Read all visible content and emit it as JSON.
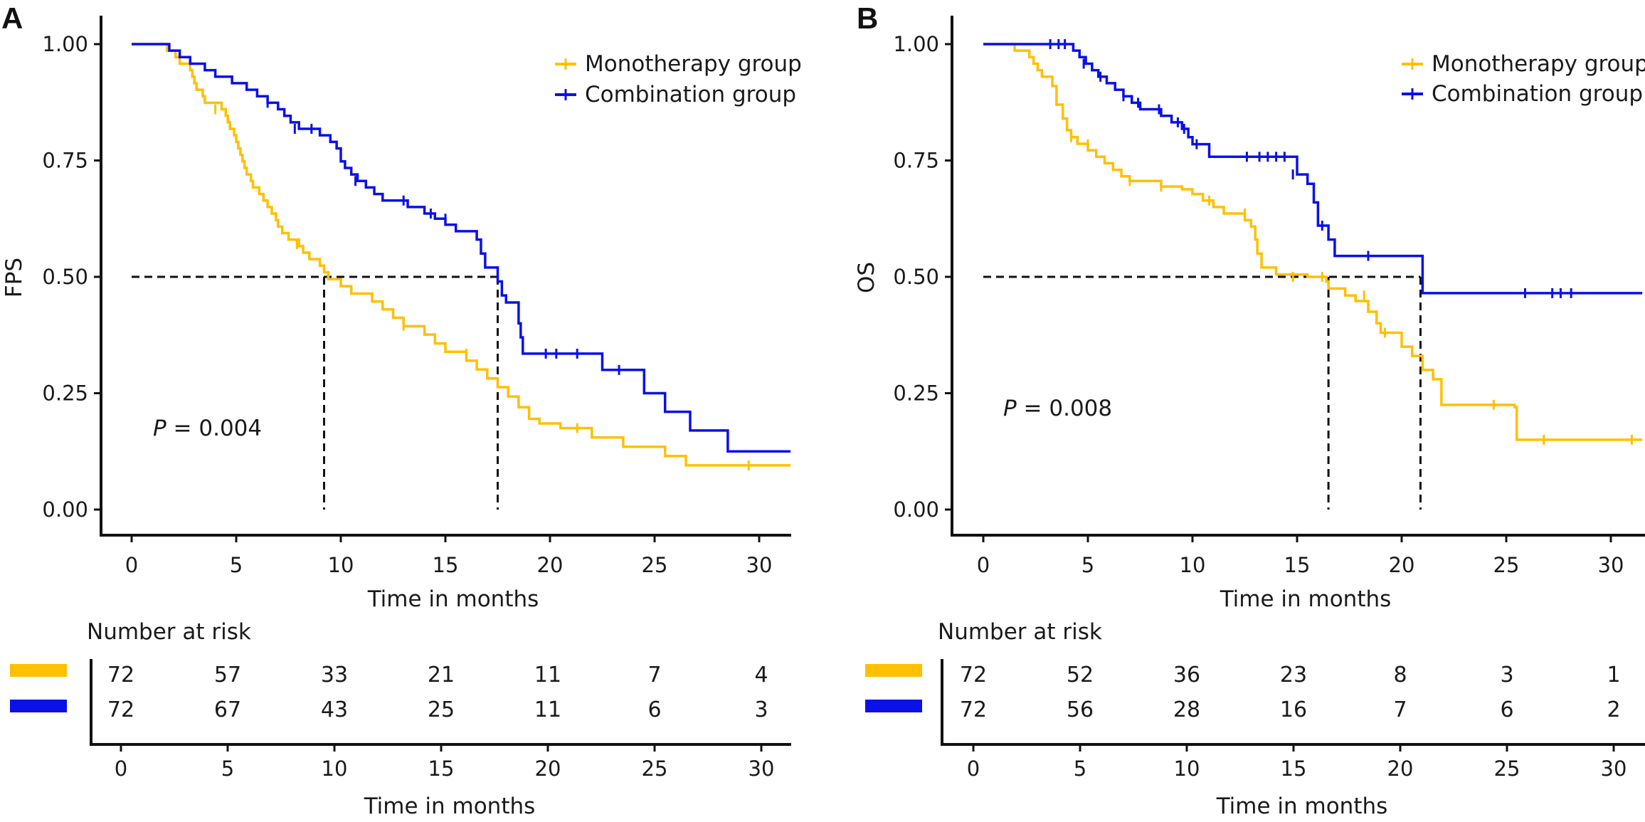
{
  "colors": {
    "monotherapy": "#FFC000",
    "combination": "#0A10E8",
    "axis": "#111111",
    "guide": "#111111"
  },
  "panels": [
    {
      "letter": "A",
      "ylabel": "FPS",
      "xlabel": "Time in months",
      "yticks": [
        "0.00",
        "0.25",
        "0.50",
        "0.75",
        "1.00"
      ],
      "xticks": [
        "0",
        "5",
        "10",
        "15",
        "20",
        "25",
        "30"
      ],
      "legend": [
        "Monotherapy group",
        "Combination group"
      ],
      "p_italic": "P",
      "p_rest": " = 0.004",
      "risk": {
        "title": "Number at risk",
        "xlabel": "Time in months",
        "xticks": [
          "0",
          "5",
          "10",
          "15",
          "20",
          "25",
          "30"
        ],
        "monotherapy": [
          "72",
          "57",
          "33",
          "21",
          "11",
          "7",
          "4"
        ],
        "combination": [
          "72",
          "67",
          "43",
          "25",
          "11",
          "6",
          "3"
        ]
      }
    },
    {
      "letter": "B",
      "ylabel": "OS",
      "xlabel": "Time in months",
      "yticks": [
        "0.00",
        "0.25",
        "0.50",
        "0.75",
        "1.00"
      ],
      "xticks": [
        "0",
        "5",
        "10",
        "15",
        "20",
        "25",
        "30"
      ],
      "legend": [
        "Monotherapy group",
        "Combination group"
      ],
      "p_italic": "P",
      "p_rest": " = 0.008",
      "risk": {
        "title": "Number at risk",
        "xlabel": "Time in months",
        "xticks": [
          "0",
          "5",
          "10",
          "15",
          "20",
          "25",
          "30"
        ],
        "monotherapy": [
          "72",
          "52",
          "36",
          "23",
          "8",
          "3",
          "1"
        ],
        "combination": [
          "72",
          "56",
          "28",
          "16",
          "7",
          "6",
          "2"
        ]
      }
    }
  ],
  "chart_data": [
    {
      "type": "line",
      "title": "",
      "xlabel": "Time in months",
      "ylabel": "FPS",
      "xlim": [
        -1.5,
        31.5
      ],
      "ylim": [
        -0.05,
        1.05
      ],
      "x_ticks": [
        0,
        5,
        10,
        15,
        20,
        25,
        30
      ],
      "y_ticks": [
        0,
        0.25,
        0.5,
        0.75,
        1.0
      ],
      "legend_position": "top-right",
      "p_value": "P = 0.004",
      "median_survival": [
        {
          "series": "Monotherapy group",
          "x": 9.2,
          "y": 0.5
        },
        {
          "series": "Combination group",
          "x": 17.5,
          "y": 0.5
        }
      ],
      "series": [
        {
          "name": "Monotherapy group",
          "color": "#FFC000",
          "steps": [
            [
              0,
              1.0
            ],
            [
              1.7,
              0.986
            ],
            [
              2.1,
              0.972
            ],
            [
              2.3,
              0.958
            ],
            [
              2.8,
              0.944
            ],
            [
              2.9,
              0.93
            ],
            [
              3.0,
              0.916
            ],
            [
              3.1,
              0.902
            ],
            [
              3.4,
              0.888
            ],
            [
              3.5,
              0.874
            ],
            [
              4.3,
              0.86
            ],
            [
              4.5,
              0.846
            ],
            [
              4.6,
              0.832
            ],
            [
              4.7,
              0.818
            ],
            [
              4.9,
              0.804
            ],
            [
              5.0,
              0.79
            ],
            [
              5.1,
              0.776
            ],
            [
              5.2,
              0.762
            ],
            [
              5.3,
              0.748
            ],
            [
              5.4,
              0.734
            ],
            [
              5.5,
              0.72
            ],
            [
              5.7,
              0.706
            ],
            [
              5.8,
              0.692
            ],
            [
              6.1,
              0.678
            ],
            [
              6.3,
              0.664
            ],
            [
              6.5,
              0.65
            ],
            [
              6.7,
              0.636
            ],
            [
              6.9,
              0.622
            ],
            [
              7.0,
              0.608
            ],
            [
              7.2,
              0.594
            ],
            [
              7.5,
              0.58
            ],
            [
              8.0,
              0.566
            ],
            [
              8.2,
              0.552
            ],
            [
              8.5,
              0.538
            ],
            [
              9.0,
              0.524
            ],
            [
              9.2,
              0.51
            ],
            [
              9.4,
              0.495
            ],
            [
              10.0,
              0.48
            ],
            [
              10.5,
              0.464
            ],
            [
              11.5,
              0.447
            ],
            [
              12.0,
              0.43
            ],
            [
              12.5,
              0.412
            ],
            [
              13.0,
              0.394
            ],
            [
              14.0,
              0.376
            ],
            [
              14.5,
              0.357
            ],
            [
              15.0,
              0.339
            ],
            [
              16.0,
              0.32
            ],
            [
              16.5,
              0.301
            ],
            [
              17.0,
              0.282
            ],
            [
              17.5,
              0.263
            ],
            [
              18.0,
              0.243
            ],
            [
              18.5,
              0.22
            ],
            [
              19.0,
              0.195
            ],
            [
              19.5,
              0.185
            ],
            [
              20.5,
              0.175
            ],
            [
              22.0,
              0.155
            ],
            [
              23.5,
              0.135
            ],
            [
              25.5,
              0.115
            ],
            [
              26.5,
              0.095
            ],
            [
              31.5,
              0.095
            ]
          ],
          "censored": [
            [
              4.0,
              0.86
            ],
            [
              7.9,
              0.57
            ],
            [
              13.0,
              0.395
            ],
            [
              16.0,
              0.335
            ],
            [
              21.3,
              0.175
            ],
            [
              29.5,
              0.095
            ]
          ]
        },
        {
          "name": "Combination group",
          "color": "#0A10E8",
          "steps": [
            [
              0,
              1.0
            ],
            [
              1.8,
              0.986
            ],
            [
              2.3,
              0.972
            ],
            [
              2.8,
              0.958
            ],
            [
              3.5,
              0.944
            ],
            [
              4.0,
              0.93
            ],
            [
              4.8,
              0.916
            ],
            [
              5.5,
              0.902
            ],
            [
              6.0,
              0.888
            ],
            [
              6.5,
              0.874
            ],
            [
              7.0,
              0.86
            ],
            [
              7.3,
              0.846
            ],
            [
              7.6,
              0.832
            ],
            [
              8.0,
              0.818
            ],
            [
              9.0,
              0.804
            ],
            [
              9.5,
              0.79
            ],
            [
              9.8,
              0.776
            ],
            [
              10.0,
              0.762
            ],
            [
              10.0,
              0.748
            ],
            [
              10.2,
              0.734
            ],
            [
              10.5,
              0.72
            ],
            [
              10.8,
              0.706
            ],
            [
              11.2,
              0.692
            ],
            [
              11.6,
              0.678
            ],
            [
              12.0,
              0.664
            ],
            [
              13.2,
              0.65
            ],
            [
              14.0,
              0.636
            ],
            [
              14.5,
              0.625
            ],
            [
              15.0,
              0.612
            ],
            [
              15.5,
              0.598
            ],
            [
              16.5,
              0.58
            ],
            [
              16.7,
              0.55
            ],
            [
              16.9,
              0.52
            ],
            [
              17.5,
              0.49
            ],
            [
              17.7,
              0.46
            ],
            [
              17.9,
              0.445
            ],
            [
              18.5,
              0.4
            ],
            [
              18.6,
              0.37
            ],
            [
              18.7,
              0.335
            ],
            [
              22.5,
              0.3
            ],
            [
              24.5,
              0.25
            ],
            [
              25.5,
              0.21
            ],
            [
              26.7,
              0.17
            ],
            [
              28.5,
              0.125
            ],
            [
              31.5,
              0.125
            ]
          ],
          "censored": [
            [
              6.5,
              0.874
            ],
            [
              7.8,
              0.818
            ],
            [
              8.6,
              0.818
            ],
            [
              10.7,
              0.706
            ],
            [
              13.0,
              0.664
            ],
            [
              14.3,
              0.636
            ],
            [
              15.0,
              0.625
            ],
            [
              19.8,
              0.335
            ],
            [
              20.3,
              0.335
            ],
            [
              21.3,
              0.335
            ],
            [
              23.3,
              0.3
            ]
          ]
        }
      ]
    },
    {
      "type": "line",
      "title": "",
      "xlabel": "Time in months",
      "ylabel": "OS",
      "xlim": [
        -1.5,
        31.5
      ],
      "ylim": [
        -0.05,
        1.05
      ],
      "x_ticks": [
        0,
        5,
        10,
        15,
        20,
        25,
        30
      ],
      "y_ticks": [
        0,
        0.25,
        0.5,
        0.75,
        1.0
      ],
      "legend_position": "top-right",
      "p_value": "P = 0.008",
      "median_survival": [
        {
          "series": "Monotherapy group",
          "x": 16.5,
          "y": 0.5
        },
        {
          "series": "Combination group",
          "x": 20.9,
          "y": 0.5
        }
      ],
      "series": [
        {
          "name": "Monotherapy group",
          "color": "#FFC000",
          "steps": [
            [
              0,
              1.0
            ],
            [
              1.5,
              0.986
            ],
            [
              2.2,
              0.972
            ],
            [
              2.4,
              0.958
            ],
            [
              2.6,
              0.944
            ],
            [
              2.8,
              0.93
            ],
            [
              3.3,
              0.91
            ],
            [
              3.5,
              0.87
            ],
            [
              3.8,
              0.84
            ],
            [
              4.0,
              0.815
            ],
            [
              4.2,
              0.8
            ],
            [
              4.5,
              0.786
            ],
            [
              5.0,
              0.772
            ],
            [
              5.4,
              0.758
            ],
            [
              5.8,
              0.744
            ],
            [
              6.2,
              0.73
            ],
            [
              6.6,
              0.716
            ],
            [
              7.0,
              0.706
            ],
            [
              8.5,
              0.694
            ],
            [
              9.5,
              0.688
            ],
            [
              10.0,
              0.678
            ],
            [
              10.5,
              0.664
            ],
            [
              11.0,
              0.65
            ],
            [
              11.5,
              0.636
            ],
            [
              12.5,
              0.622
            ],
            [
              12.8,
              0.608
            ],
            [
              13.0,
              0.58
            ],
            [
              13.1,
              0.55
            ],
            [
              13.3,
              0.52
            ],
            [
              14.0,
              0.505
            ],
            [
              15.5,
              0.5
            ],
            [
              16.4,
              0.49
            ],
            [
              16.5,
              0.475
            ],
            [
              17.3,
              0.46
            ],
            [
              17.8,
              0.448
            ],
            [
              18.4,
              0.425
            ],
            [
              18.8,
              0.4
            ],
            [
              19.0,
              0.38
            ],
            [
              20.0,
              0.35
            ],
            [
              20.5,
              0.33
            ],
            [
              21.0,
              0.3
            ],
            [
              21.5,
              0.28
            ],
            [
              21.9,
              0.225
            ],
            [
              25.4,
              0.22
            ],
            [
              25.5,
              0.15
            ],
            [
              31.5,
              0.15
            ]
          ],
          "censored": [
            [
              4.2,
              0.8
            ],
            [
              5.0,
              0.785
            ],
            [
              7.0,
              0.706
            ],
            [
              8.5,
              0.694
            ],
            [
              10.8,
              0.664
            ],
            [
              12.5,
              0.636
            ],
            [
              14.8,
              0.5
            ],
            [
              16.2,
              0.5
            ],
            [
              18.2,
              0.46
            ],
            [
              19.2,
              0.38
            ],
            [
              24.4,
              0.225
            ],
            [
              26.8,
              0.15
            ],
            [
              31.0,
              0.15
            ]
          ]
        },
        {
          "name": "Combination group",
          "color": "#0A10E8",
          "steps": [
            [
              0,
              1.0
            ],
            [
              4.3,
              0.986
            ],
            [
              4.6,
              0.972
            ],
            [
              4.9,
              0.958
            ],
            [
              5.2,
              0.944
            ],
            [
              5.5,
              0.93
            ],
            [
              5.9,
              0.916
            ],
            [
              6.3,
              0.902
            ],
            [
              6.7,
              0.888
            ],
            [
              7.1,
              0.874
            ],
            [
              7.5,
              0.86
            ],
            [
              8.5,
              0.846
            ],
            [
              9.0,
              0.832
            ],
            [
              9.5,
              0.818
            ],
            [
              9.8,
              0.8
            ],
            [
              10.0,
              0.785
            ],
            [
              10.8,
              0.758
            ],
            [
              15.0,
              0.72
            ],
            [
              15.5,
              0.7
            ],
            [
              15.8,
              0.66
            ],
            [
              16.0,
              0.61
            ],
            [
              16.5,
              0.58
            ],
            [
              16.8,
              0.545
            ],
            [
              21.0,
              0.465
            ],
            [
              31.5,
              0.465
            ]
          ],
          "censored": [
            [
              3.2,
              1.0
            ],
            [
              3.6,
              1.0
            ],
            [
              3.9,
              1.0
            ],
            [
              4.8,
              0.958
            ],
            [
              5.6,
              0.93
            ],
            [
              6.7,
              0.888
            ],
            [
              7.4,
              0.874
            ],
            [
              8.4,
              0.86
            ],
            [
              9.3,
              0.832
            ],
            [
              9.6,
              0.818
            ],
            [
              10.2,
              0.785
            ],
            [
              12.6,
              0.758
            ],
            [
              13.2,
              0.758
            ],
            [
              13.6,
              0.758
            ],
            [
              14.0,
              0.758
            ],
            [
              14.4,
              0.758
            ],
            [
              14.8,
              0.72
            ],
            [
              16.2,
              0.61
            ],
            [
              18.4,
              0.545
            ],
            [
              25.9,
              0.465
            ],
            [
              27.2,
              0.465
            ],
            [
              27.6,
              0.465
            ],
            [
              28.1,
              0.465
            ]
          ]
        }
      ]
    }
  ]
}
